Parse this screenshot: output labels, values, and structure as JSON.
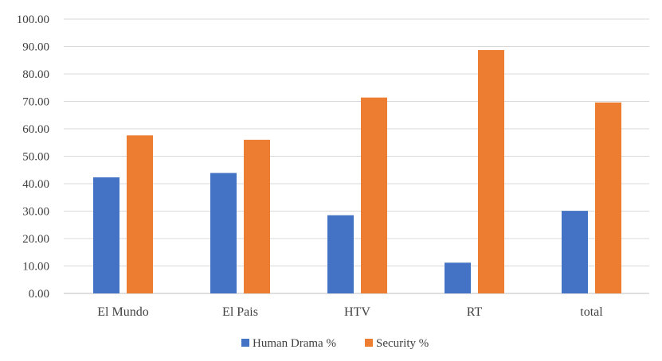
{
  "chart_data": {
    "type": "bar",
    "categories": [
      "El Mundo",
      "El Pais",
      "HTV",
      "RT",
      "total"
    ],
    "series": [
      {
        "name": "Human Drama %",
        "values": [
          42.3,
          43.9,
          28.5,
          11.2,
          30.1
        ],
        "color": "#4472C4"
      },
      {
        "name": "Security %",
        "values": [
          57.6,
          56.0,
          71.4,
          88.7,
          69.6
        ],
        "color": "#ED7D31"
      }
    ],
    "title": "",
    "xlabel": "",
    "ylabel": "",
    "ylim": [
      0,
      100
    ],
    "yticks": [
      "0.00",
      "10.00",
      "20.00",
      "30.00",
      "40.00",
      "50.00",
      "60.00",
      "70.00",
      "80.00",
      "90.00",
      "100.00"
    ],
    "grid": true,
    "legend_position": "bottom"
  }
}
